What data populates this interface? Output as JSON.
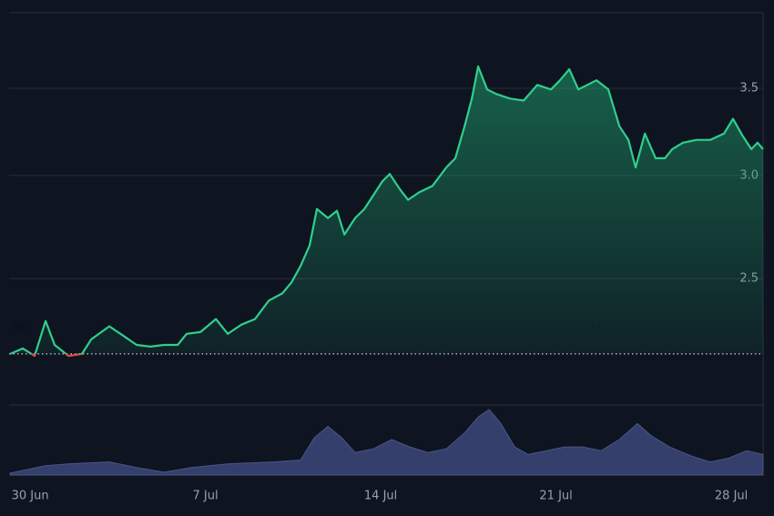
{
  "chart_data": {
    "type": "line",
    "yscale": "log",
    "ylim": [
      2.0,
      4.0
    ],
    "yticks": [
      2.5,
      {
        "value": 3,
        "label": "3.0"
      },
      3.5
    ],
    "xlim": [
      -0.84,
      29.27
    ],
    "xticks": [
      {
        "value": 0,
        "label": "30 Jun"
      },
      {
        "value": 7,
        "label": "7 Jul"
      },
      {
        "value": 14,
        "label": "14 Jul"
      },
      {
        "value": 21,
        "label": "21 Jul"
      },
      {
        "value": 28,
        "label": "28 Jul"
      }
    ],
    "grid": true,
    "baseline": 2.189,
    "annotations": [
      "36",
      "37"
    ],
    "series": [
      {
        "color": "#2fcf8c",
        "below_color": "#e0474c",
        "x": [
          -0.8,
          -0.29,
          0.18,
          0.62,
          0.98,
          1.53,
          2.07,
          2.44,
          3.16,
          3.71,
          4.25,
          4.8,
          5.35,
          5.89,
          6.25,
          6.8,
          7.42,
          7.89,
          8.44,
          8.98,
          9.53,
          10.07,
          10.44,
          10.8,
          11.16,
          11.45,
          11.89,
          12.25,
          12.55,
          12.98,
          13.35,
          13.71,
          14.07,
          14.36,
          14.8,
          15.09,
          15.53,
          16.07,
          16.62,
          16.98,
          17.35,
          17.64,
          17.89,
          18.25,
          18.62,
          19.16,
          19.71,
          20.25,
          20.8,
          21.16,
          21.53,
          21.89,
          22.25,
          22.62,
          23.09,
          23.53,
          23.89,
          24.18,
          24.55,
          24.98,
          25.35,
          25.64,
          26.07,
          26.62,
          27.16,
          27.71,
          28.07,
          28.44,
          28.8,
          29.05,
          29.27
        ],
        "values": [
          2.189,
          2.21,
          2.181,
          2.32,
          2.224,
          2.181,
          2.189,
          2.246,
          2.298,
          2.261,
          2.224,
          2.217,
          2.224,
          2.224,
          2.268,
          2.275,
          2.328,
          2.268,
          2.305,
          2.328,
          2.405,
          2.436,
          2.484,
          2.557,
          2.651,
          2.828,
          2.783,
          2.819,
          2.703,
          2.783,
          2.828,
          2.898,
          2.97,
          3.008,
          2.922,
          2.874,
          2.912,
          2.946,
          3.043,
          3.093,
          3.273,
          3.437,
          3.638,
          3.493,
          3.465,
          3.437,
          3.425,
          3.521,
          3.493,
          3.55,
          3.62,
          3.493,
          3.521,
          3.55,
          3.493,
          3.273,
          3.195,
          3.043,
          3.231,
          3.093,
          3.093,
          3.143,
          3.179,
          3.195,
          3.195,
          3.231,
          3.316,
          3.221,
          3.143,
          3.179,
          3.143
        ]
      }
    ],
    "volume": {
      "color": "#343f6b",
      "x": [
        -0.8,
        0.62,
        1.53,
        3.16,
        4.25,
        5.35,
        6.44,
        7.89,
        9.71,
        10.8,
        11.35,
        11.89,
        12.44,
        12.98,
        13.71,
        14.44,
        15.16,
        15.89,
        16.62,
        17.35,
        17.89,
        18.33,
        18.8,
        19.35,
        19.89,
        20.62,
        21.35,
        22.07,
        22.8,
        23.53,
        24.25,
        24.8,
        25.53,
        26.44,
        27.16,
        27.89,
        28.62,
        29.27
      ],
      "values": [
        2,
        10,
        12,
        14,
        8,
        3,
        8,
        12,
        14,
        16,
        40,
        52,
        40,
        24,
        28,
        38,
        30,
        24,
        28,
        45,
        62,
        70,
        55,
        30,
        22,
        26,
        30,
        30,
        26,
        38,
        55,
        42,
        30,
        20,
        14,
        18,
        26,
        22
      ]
    }
  }
}
